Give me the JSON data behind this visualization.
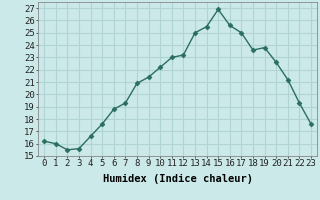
{
  "x": [
    0,
    1,
    2,
    3,
    4,
    5,
    6,
    7,
    8,
    9,
    10,
    11,
    12,
    13,
    14,
    15,
    16,
    17,
    18,
    19,
    20,
    21,
    22,
    23
  ],
  "y": [
    16.2,
    16.0,
    15.5,
    15.6,
    16.6,
    17.6,
    18.8,
    19.3,
    20.9,
    21.4,
    22.2,
    23.0,
    23.2,
    25.0,
    25.5,
    26.9,
    25.6,
    25.0,
    23.6,
    23.8,
    22.6,
    21.2,
    19.3,
    17.6
  ],
  "line_color": "#2a6e60",
  "marker": "D",
  "marker_size": 2.5,
  "bg_color": "#cce9e9",
  "grid_color": "#b0d4d4",
  "xlabel": "Humidex (Indice chaleur)",
  "xlim": [
    -0.5,
    23.5
  ],
  "ylim": [
    15,
    27.5
  ],
  "yticks": [
    15,
    16,
    17,
    18,
    19,
    20,
    21,
    22,
    23,
    24,
    25,
    26,
    27
  ],
  "xticks": [
    0,
    1,
    2,
    3,
    4,
    5,
    6,
    7,
    8,
    9,
    10,
    11,
    12,
    13,
    14,
    15,
    16,
    17,
    18,
    19,
    20,
    21,
    22,
    23
  ],
  "tick_fontsize": 6.5,
  "xlabel_fontsize": 7.5
}
